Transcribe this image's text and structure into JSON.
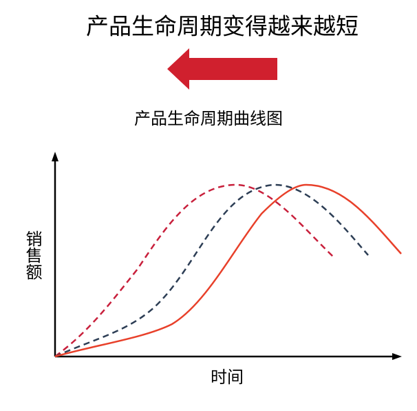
{
  "header": {
    "title": "产品生命周期变得越来越短"
  },
  "diagram": {
    "title": "产品生命周期曲线图",
    "y_label": "销售额",
    "x_label": "时间"
  }
}
